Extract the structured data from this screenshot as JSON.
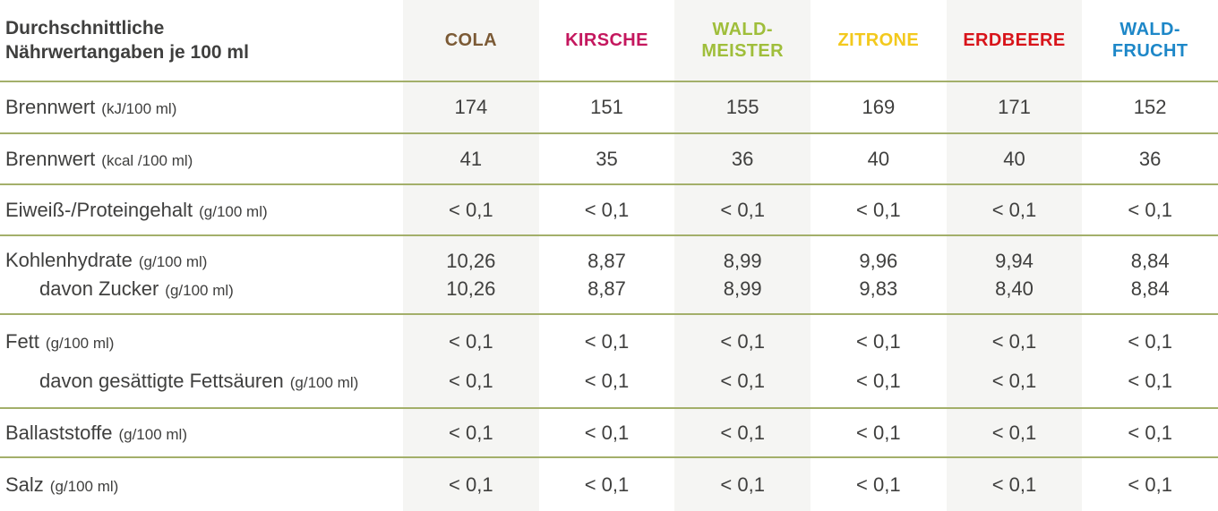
{
  "title": "Durchschnittliche\nNährwertangaben je 100 ml",
  "colors": {
    "text": "#3f3f3e",
    "line": "#a3af6a",
    "stripe": "#f5f5f3"
  },
  "columns": [
    {
      "id": "cola",
      "label": "COLA",
      "color": "#7b5a35",
      "striped": true
    },
    {
      "id": "kirsche",
      "label": "KIRSCHE",
      "color": "#c4175e",
      "striped": false
    },
    {
      "id": "waldmeister",
      "label": "WALD-\nMEISTER",
      "color": "#9fbe3a",
      "striped": true
    },
    {
      "id": "zitrone",
      "label": "ZITRONE",
      "color": "#f3c91d",
      "striped": false
    },
    {
      "id": "erdbeere",
      "label": "ERDBEERE",
      "color": "#d8141a",
      "striped": true
    },
    {
      "id": "waldfrucht",
      "label": "WALD-\nFRUCHT",
      "color": "#1d87c8",
      "striped": false
    }
  ],
  "rows": [
    {
      "lines": [
        {
          "label": "Brennwert",
          "unit": "(kJ/100 ml)",
          "values": [
            "174",
            "151",
            "155",
            "169",
            "171",
            "152"
          ]
        }
      ]
    },
    {
      "lines": [
        {
          "label": "Brennwert",
          "unit": "(kcal /100 ml)",
          "values": [
            "41",
            "35",
            "36",
            "40",
            "40",
            "36"
          ]
        }
      ]
    },
    {
      "lines": [
        {
          "label": "Eiweiß-/Proteingehalt",
          "unit": "(g/100 ml)",
          "values": [
            "< 0,1",
            "< 0,1",
            "< 0,1",
            "< 0,1",
            "< 0,1",
            "< 0,1"
          ]
        }
      ]
    },
    {
      "lines": [
        {
          "label": "Kohlenhydrate",
          "unit": "(g/100 ml)",
          "values": [
            "10,26",
            "8,87",
            "8,99",
            "9,96",
            "9,94",
            "8,84"
          ]
        },
        {
          "label": "davon Zucker",
          "unit": "(g/100 ml)",
          "indent": true,
          "values": [
            "10,26",
            "8,87",
            "8,99",
            "9,83",
            "8,40",
            "8,84"
          ]
        }
      ]
    },
    {
      "lines": [
        {
          "label": "Fett",
          "unit": "(g/100 ml)",
          "values": [
            "< 0,1",
            "< 0,1",
            "< 0,1",
            "< 0,1",
            "< 0,1",
            "< 0,1"
          ]
        },
        {
          "label": "davon gesättigte Fettsäuren",
          "unit": "(g/100 ml)",
          "indent": true,
          "values": [
            "< 0,1",
            "< 0,1",
            "< 0,1",
            "< 0,1",
            "< 0,1",
            "< 0,1"
          ]
        }
      ]
    },
    {
      "lines": [
        {
          "label": "Ballaststoffe",
          "unit": "(g/100 ml)",
          "values": [
            "< 0,1",
            "< 0,1",
            "< 0,1",
            "< 0,1",
            "< 0,1",
            "< 0,1"
          ]
        }
      ]
    },
    {
      "lines": [
        {
          "label": "Salz",
          "unit": "(g/100 ml)",
          "values": [
            "< 0,1",
            "< 0,1",
            "< 0,1",
            "< 0,1",
            "< 0,1",
            "< 0,1"
          ]
        }
      ]
    }
  ]
}
